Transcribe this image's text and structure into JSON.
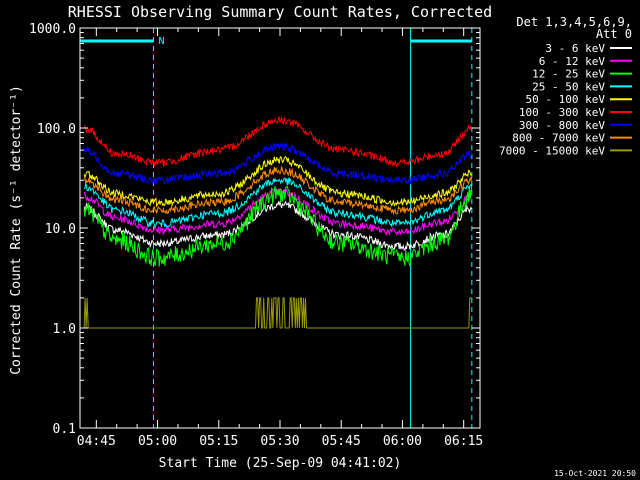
{
  "chart_data": {
    "type": "line",
    "title": "RHESSI Observing Summary Count Rates, Corrected",
    "xlabel": "Start Time (25-Sep-09 04:41:02)",
    "ylabel": "Corrected Count Rate (s⁻¹ detector⁻¹)",
    "yscale": "log",
    "ylim": [
      0.1,
      1000
    ],
    "xlim": [
      "04:41",
      "06:19"
    ],
    "x_ticks": [
      "04:45",
      "05:00",
      "05:15",
      "05:30",
      "05:45",
      "06:00",
      "06:15"
    ],
    "y_ticks": [
      "1000.0",
      "100.0",
      "10.0",
      "1.0",
      "0.1"
    ],
    "legend_header": [
      "Det 1,3,4,5,6,9,",
      "Att 0"
    ],
    "legend_position": "right",
    "timestamp": "15-Oct-2021 20:50",
    "annotations": [
      {
        "text": "N",
        "x": "04:59"
      }
    ],
    "night_intervals": [
      [
        "04:41",
        "04:59"
      ],
      [
        "06:02",
        "06:17"
      ]
    ],
    "series": [
      {
        "name": "3 - 6 keV",
        "color": "#ffffff",
        "x": [
          "04:42",
          "04:50",
          "05:00",
          "05:15",
          "05:30",
          "05:45",
          "06:00",
          "06:10",
          "06:17"
        ],
        "y": [
          16,
          9.5,
          7,
          8.5,
          17,
          8.5,
          6.5,
          8.5,
          16
        ]
      },
      {
        "name": "6 - 12 keV",
        "color": "#ff00ff",
        "x": [
          "04:42",
          "04:50",
          "05:00",
          "05:15",
          "05:30",
          "05:45",
          "06:00",
          "06:10",
          "06:17"
        ],
        "y": [
          21,
          12.5,
          9.5,
          11,
          23,
          11,
          9,
          11.5,
          21
        ]
      },
      {
        "name": "12 - 25 keV",
        "color": "#00ff00",
        "x": [
          "04:42",
          "04:50",
          "05:00",
          "05:15",
          "05:30",
          "05:45",
          "06:00",
          "06:10",
          "06:17"
        ],
        "y": [
          15,
          7.5,
          5,
          7,
          22,
          7,
          5,
          7.5,
          22
        ]
      },
      {
        "name": "25 - 50 keV",
        "color": "#00ffff",
        "x": [
          "04:42",
          "04:50",
          "05:00",
          "05:15",
          "05:30",
          "05:45",
          "06:00",
          "06:10",
          "06:17"
        ],
        "y": [
          26,
          15,
          11,
          14,
          30,
          14,
          11,
          15,
          26
        ]
      },
      {
        "name": "50 - 100 keV",
        "color": "#ffff00",
        "x": [
          "04:42",
          "04:50",
          "05:00",
          "05:15",
          "05:30",
          "05:45",
          "06:00",
          "06:10",
          "06:17"
        ],
        "y": [
          35,
          22,
          18,
          22,
          48,
          22,
          18,
          22,
          35
        ]
      },
      {
        "name": "100 - 300 keV",
        "color": "#ff0000",
        "x": [
          "04:42",
          "04:50",
          "05:00",
          "05:15",
          "05:30",
          "05:45",
          "06:00",
          "06:10",
          "06:17"
        ],
        "y": [
          100,
          55,
          45,
          60,
          120,
          60,
          45,
          55,
          100
        ]
      },
      {
        "name": "300 - 800 keV",
        "color": "#0000ff",
        "x": [
          "04:42",
          "04:50",
          "05:00",
          "05:15",
          "05:30",
          "05:45",
          "06:00",
          "06:10",
          "06:17"
        ],
        "y": [
          60,
          35,
          30,
          35,
          65,
          35,
          30,
          35,
          55
        ]
      },
      {
        "name": "800 - 7000 keV",
        "color": "#ff8c00",
        "x": [
          "04:42",
          "04:50",
          "05:00",
          "05:15",
          "05:30",
          "05:45",
          "06:00",
          "06:10",
          "06:17"
        ],
        "y": [
          30,
          19,
          15,
          18,
          38,
          18,
          15,
          19,
          30
        ]
      },
      {
        "name": "7000 - 15000 keV",
        "color": "#999900",
        "x": [
          "04:42",
          "04:44",
          "05:22",
          "05:26",
          "05:29",
          "05:34",
          "05:40",
          "06:15",
          "06:17"
        ],
        "y": [
          2,
          1,
          1,
          2,
          2,
          2,
          1,
          1,
          2
        ]
      }
    ]
  }
}
